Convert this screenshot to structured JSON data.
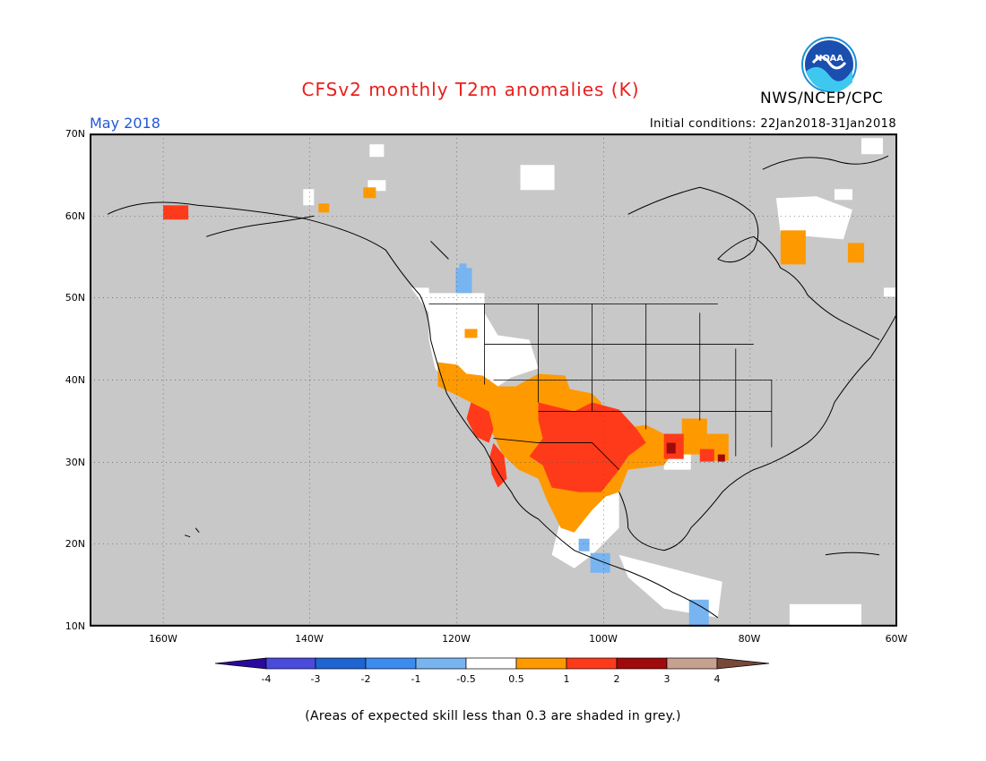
{
  "header": {
    "title": "CFSv2 monthly T2m anomalies (K)",
    "org": "NWS/NCEP/CPC",
    "month": "May 2018",
    "initial_conditions": "Initial conditions: 22Jan2018-31Jan2018",
    "logo_text": "NOAA"
  },
  "map": {
    "lat_labels": [
      "70N",
      "60N",
      "50N",
      "40N",
      "30N",
      "20N",
      "10N"
    ],
    "lon_labels": [
      "160W",
      "140W",
      "120W",
      "100W",
      "80W",
      "60W"
    ],
    "extent": {
      "lon_min": -170,
      "lon_max": -60,
      "lat_min": 10,
      "lat_max": 70
    },
    "background_color": "#c8c8c8",
    "gridline_style": "dotted",
    "regions": [
      {
        "label": "Southwest US / Northern Mexico warm anomaly",
        "category": "1 to 2",
        "color": "#ff3a1a"
      },
      {
        "label": "Texas / Oklahoma warm anomaly",
        "category": "1 to 2",
        "color": "#ff3a1a"
      },
      {
        "label": "Mexico / Gulf Coast warm anomaly",
        "category": "0.5 to 1",
        "color": "#ff9900"
      },
      {
        "label": "Western US near-normal",
        "category": "-0.5 to 0.5",
        "color": "#ffffff"
      },
      {
        "label": "Quebec / Labrador warm anomaly",
        "category": "0.5 to 1",
        "color": "#ff9900"
      },
      {
        "label": "Alaska warm spot",
        "category": "1 to 2",
        "color": "#ff3a1a"
      },
      {
        "label": "Central America cool spot",
        "category": "-1 to -0.5",
        "color": "#78b4f0"
      }
    ]
  },
  "colorbar": {
    "labels": [
      "-4",
      "-3",
      "-2",
      "-1",
      "-0.5",
      "0.5",
      "1",
      "2",
      "3",
      "4"
    ],
    "colors": [
      "#2a0a9c",
      "#4a4adc",
      "#1e64d2",
      "#3c8cf0",
      "#78b4f0",
      "#ffffff",
      "#ff9900",
      "#ff3a1a",
      "#a00a0a",
      "#c8a090",
      "#784838"
    ]
  },
  "footer": {
    "note": "(Areas of expected skill less than 0.3 are shaded in grey.)"
  }
}
